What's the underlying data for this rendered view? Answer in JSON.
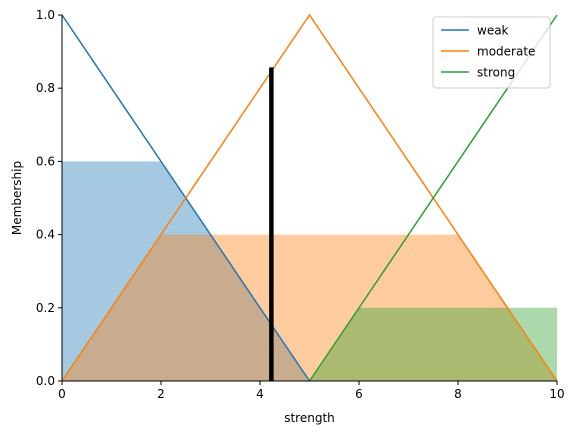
{
  "chart_data": {
    "type": "line",
    "title": "",
    "xlabel": "strength",
    "ylabel": "Membership",
    "xlim": [
      0,
      10
    ],
    "ylim": [
      0,
      1
    ],
    "xticks": [
      0,
      2,
      4,
      6,
      8,
      10
    ],
    "yticks": [
      0.0,
      0.2,
      0.4,
      0.6,
      0.8,
      1.0
    ],
    "xtick_labels": [
      "0",
      "2",
      "4",
      "6",
      "8",
      "10"
    ],
    "ytick_labels": [
      "0.0",
      "0.2",
      "0.4",
      "0.6",
      "0.8",
      "1.0"
    ],
    "grid": false,
    "legend_position": "top-right",
    "series": [
      {
        "name": "weak",
        "color": "#1f77b4",
        "x": [
          0,
          5
        ],
        "y": [
          1,
          0
        ]
      },
      {
        "name": "moderate",
        "color": "#ff7f0e",
        "x": [
          0,
          5,
          10
        ],
        "y": [
          0,
          1,
          0
        ]
      },
      {
        "name": "strong",
        "color": "#2ca02c",
        "x": [
          5,
          10
        ],
        "y": [
          0,
          1
        ]
      }
    ],
    "activation_areas": [
      {
        "series": "weak",
        "color": "#1f77b4",
        "level": 0.6,
        "x": [
          0,
          2,
          5
        ],
        "y": [
          0.6,
          0.6,
          0
        ]
      },
      {
        "series": "moderate",
        "color": "#ff7f0e",
        "level": 0.4,
        "x": [
          0,
          2,
          8,
          10
        ],
        "y": [
          0,
          0.4,
          0.4,
          0
        ]
      },
      {
        "series": "strong",
        "color": "#2ca02c",
        "level": 0.2,
        "x": [
          5,
          6,
          10,
          10
        ],
        "y": [
          0,
          0.2,
          0.2,
          0
        ]
      }
    ],
    "output_line": {
      "x": 4.23,
      "y_top": 0.857,
      "color": "#000000"
    }
  }
}
